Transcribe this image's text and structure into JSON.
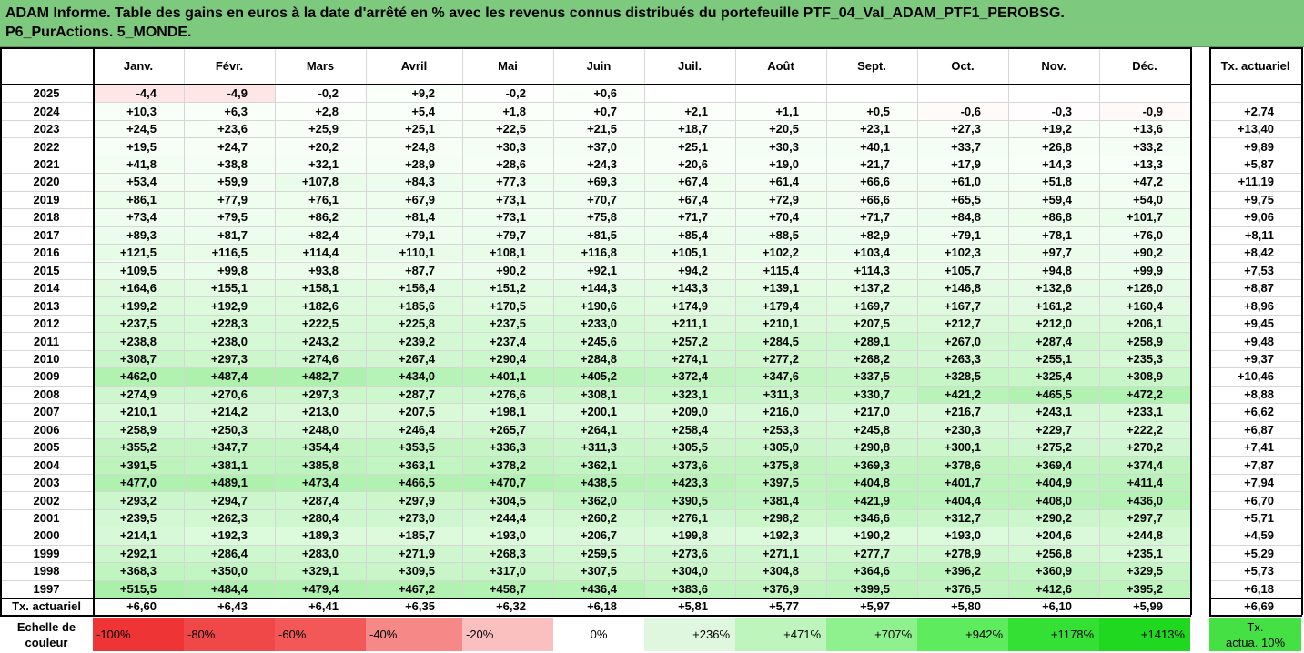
{
  "title": {
    "line1": "ADAM Informe. Table des gains en euros à la date d'arrêté en % avec les revenus connus distribués du portefeuille PTF_04_Val_ADAM_PTF1_PEROBSG.",
    "line2": "P6_PurActions. 5_MONDE."
  },
  "months": [
    "Janv.",
    "Févr.",
    "Mars",
    "Avril",
    "Mai",
    "Juin",
    "Juil.",
    "Août",
    "Sept.",
    "Oct.",
    "Nov.",
    "Déc."
  ],
  "rate_header": "Tx. actuariel",
  "rows": [
    {
      "year": "2025",
      "values": [
        "-4,4",
        "-4,9",
        "-0,2",
        "+9,2",
        "-0,2",
        "+0,6",
        "",
        "",
        "",
        "",
        "",
        ""
      ],
      "rate": ""
    },
    {
      "year": "2024",
      "values": [
        "+10,3",
        "+6,3",
        "+2,8",
        "+5,4",
        "+1,8",
        "+0,7",
        "+2,1",
        "+1,1",
        "+0,5",
        "-0,6",
        "-0,3",
        "-0,9"
      ],
      "rate": "+2,74"
    },
    {
      "year": "2023",
      "values": [
        "+24,5",
        "+23,6",
        "+25,9",
        "+25,1",
        "+22,5",
        "+21,5",
        "+18,7",
        "+20,5",
        "+23,1",
        "+27,3",
        "+19,2",
        "+13,6"
      ],
      "rate": "+13,40"
    },
    {
      "year": "2022",
      "values": [
        "+19,5",
        "+24,7",
        "+20,2",
        "+24,8",
        "+30,3",
        "+37,0",
        "+25,1",
        "+30,3",
        "+40,1",
        "+33,7",
        "+26,8",
        "+33,2"
      ],
      "rate": "+9,89"
    },
    {
      "year": "2021",
      "values": [
        "+41,8",
        "+38,8",
        "+32,1",
        "+28,9",
        "+28,6",
        "+24,3",
        "+20,6",
        "+19,0",
        "+21,7",
        "+17,9",
        "+14,3",
        "+13,3"
      ],
      "rate": "+5,87"
    },
    {
      "year": "2020",
      "values": [
        "+53,4",
        "+59,9",
        "+107,8",
        "+84,3",
        "+77,3",
        "+69,3",
        "+67,4",
        "+61,4",
        "+66,6",
        "+61,0",
        "+51,8",
        "+47,2"
      ],
      "rate": "+11,19"
    },
    {
      "year": "2019",
      "values": [
        "+86,1",
        "+77,9",
        "+76,1",
        "+67,9",
        "+73,1",
        "+70,7",
        "+67,4",
        "+72,9",
        "+66,6",
        "+65,5",
        "+59,4",
        "+54,0"
      ],
      "rate": "+9,75"
    },
    {
      "year": "2018",
      "values": [
        "+73,4",
        "+79,5",
        "+86,2",
        "+81,4",
        "+73,1",
        "+75,8",
        "+71,7",
        "+70,4",
        "+71,7",
        "+84,8",
        "+86,8",
        "+101,7"
      ],
      "rate": "+9,06"
    },
    {
      "year": "2017",
      "values": [
        "+89,3",
        "+81,7",
        "+82,4",
        "+79,1",
        "+79,7",
        "+81,5",
        "+85,4",
        "+88,5",
        "+82,9",
        "+79,1",
        "+78,1",
        "+76,0"
      ],
      "rate": "+8,11"
    },
    {
      "year": "2016",
      "values": [
        "+121,5",
        "+116,5",
        "+114,4",
        "+110,1",
        "+108,1",
        "+116,8",
        "+105,1",
        "+102,2",
        "+103,4",
        "+102,3",
        "+97,7",
        "+90,2"
      ],
      "rate": "+8,42"
    },
    {
      "year": "2015",
      "values": [
        "+109,5",
        "+99,8",
        "+93,8",
        "+87,7",
        "+90,2",
        "+92,1",
        "+94,2",
        "+115,4",
        "+114,3",
        "+105,7",
        "+94,8",
        "+99,9"
      ],
      "rate": "+7,53"
    },
    {
      "year": "2014",
      "values": [
        "+164,6",
        "+155,1",
        "+158,1",
        "+156,4",
        "+151,2",
        "+144,3",
        "+143,3",
        "+139,1",
        "+137,2",
        "+146,8",
        "+132,6",
        "+126,0"
      ],
      "rate": "+8,87"
    },
    {
      "year": "2013",
      "values": [
        "+199,2",
        "+192,9",
        "+182,6",
        "+185,6",
        "+170,5",
        "+190,6",
        "+174,9",
        "+179,4",
        "+169,7",
        "+167,7",
        "+161,2",
        "+160,4"
      ],
      "rate": "+8,96"
    },
    {
      "year": "2012",
      "values": [
        "+237,5",
        "+228,3",
        "+222,5",
        "+225,8",
        "+237,5",
        "+233,0",
        "+211,1",
        "+210,1",
        "+207,5",
        "+212,7",
        "+212,0",
        "+206,1"
      ],
      "rate": "+9,45"
    },
    {
      "year": "2011",
      "values": [
        "+238,8",
        "+238,0",
        "+243,2",
        "+239,2",
        "+237,4",
        "+245,6",
        "+257,2",
        "+284,5",
        "+289,1",
        "+267,0",
        "+287,4",
        "+258,9"
      ],
      "rate": "+9,48"
    },
    {
      "year": "2010",
      "values": [
        "+308,7",
        "+297,3",
        "+274,6",
        "+267,4",
        "+290,4",
        "+284,8",
        "+274,1",
        "+277,2",
        "+268,2",
        "+263,3",
        "+255,1",
        "+235,3"
      ],
      "rate": "+9,37"
    },
    {
      "year": "2009",
      "values": [
        "+462,0",
        "+487,4",
        "+482,7",
        "+434,0",
        "+401,1",
        "+405,2",
        "+372,4",
        "+347,6",
        "+337,5",
        "+328,5",
        "+325,4",
        "+308,9"
      ],
      "rate": "+10,46"
    },
    {
      "year": "2008",
      "values": [
        "+274,9",
        "+270,6",
        "+297,3",
        "+287,7",
        "+276,6",
        "+308,1",
        "+323,1",
        "+311,3",
        "+330,7",
        "+421,2",
        "+465,5",
        "+472,2"
      ],
      "rate": "+8,88"
    },
    {
      "year": "2007",
      "values": [
        "+210,1",
        "+214,2",
        "+213,0",
        "+207,5",
        "+198,1",
        "+200,1",
        "+209,0",
        "+216,0",
        "+217,0",
        "+216,7",
        "+243,1",
        "+233,1"
      ],
      "rate": "+6,62"
    },
    {
      "year": "2006",
      "values": [
        "+258,9",
        "+250,3",
        "+248,0",
        "+246,4",
        "+265,7",
        "+264,1",
        "+258,4",
        "+253,3",
        "+245,8",
        "+230,3",
        "+229,7",
        "+222,2"
      ],
      "rate": "+6,87"
    },
    {
      "year": "2005",
      "values": [
        "+355,2",
        "+347,7",
        "+354,4",
        "+353,5",
        "+336,3",
        "+311,3",
        "+305,5",
        "+305,0",
        "+290,8",
        "+300,1",
        "+275,2",
        "+270,2"
      ],
      "rate": "+7,41"
    },
    {
      "year": "2004",
      "values": [
        "+391,5",
        "+381,1",
        "+385,8",
        "+363,1",
        "+378,2",
        "+362,1",
        "+373,6",
        "+375,8",
        "+369,3",
        "+378,6",
        "+369,4",
        "+374,4"
      ],
      "rate": "+7,87"
    },
    {
      "year": "2003",
      "values": [
        "+477,0",
        "+489,1",
        "+473,4",
        "+466,5",
        "+470,7",
        "+438,5",
        "+423,3",
        "+397,5",
        "+404,8",
        "+401,7",
        "+404,9",
        "+411,4"
      ],
      "rate": "+7,94"
    },
    {
      "year": "2002",
      "values": [
        "+293,2",
        "+294,7",
        "+287,4",
        "+297,9",
        "+304,5",
        "+362,0",
        "+390,5",
        "+381,4",
        "+421,9",
        "+404,4",
        "+408,0",
        "+436,0"
      ],
      "rate": "+6,70"
    },
    {
      "year": "2001",
      "values": [
        "+239,5",
        "+262,3",
        "+280,4",
        "+273,0",
        "+244,4",
        "+260,2",
        "+276,1",
        "+298,2",
        "+346,6",
        "+312,7",
        "+290,2",
        "+297,7"
      ],
      "rate": "+5,71"
    },
    {
      "year": "2000",
      "values": [
        "+214,1",
        "+192,3",
        "+189,3",
        "+185,7",
        "+193,0",
        "+206,7",
        "+199,8",
        "+192,3",
        "+190,2",
        "+193,0",
        "+204,6",
        "+244,8"
      ],
      "rate": "+4,59"
    },
    {
      "year": "1999",
      "values": [
        "+292,1",
        "+286,4",
        "+283,0",
        "+271,9",
        "+268,3",
        "+259,5",
        "+273,6",
        "+271,1",
        "+277,7",
        "+278,9",
        "+256,8",
        "+235,1"
      ],
      "rate": "+5,29"
    },
    {
      "year": "1998",
      "values": [
        "+368,3",
        "+350,0",
        "+329,1",
        "+309,5",
        "+317,0",
        "+307,5",
        "+304,0",
        "+304,8",
        "+364,6",
        "+396,2",
        "+360,9",
        "+329,5"
      ],
      "rate": "+5,73"
    },
    {
      "year": "1997",
      "values": [
        "+515,5",
        "+484,4",
        "+479,4",
        "+467,2",
        "+458,7",
        "+436,4",
        "+383,6",
        "+376,9",
        "+399,5",
        "+376,5",
        "+412,6",
        "+395,2"
      ],
      "rate": "+6,18"
    }
  ],
  "footer": {
    "label": "Tx. actuariel",
    "values": [
      "+6,60",
      "+6,43",
      "+6,41",
      "+6,35",
      "+6,32",
      "+6,18",
      "+5,81",
      "+5,77",
      "+5,97",
      "+5,80",
      "+6,10",
      "+5,99"
    ],
    "rate": "+6,69"
  },
  "scale": {
    "label_line1": "Echelle de",
    "label_line2": "couleur",
    "items": [
      {
        "label": "-100%",
        "color": "#ee3434"
      },
      {
        "label": "-80%",
        "color": "#f04848"
      },
      {
        "label": "-60%",
        "color": "#f25858"
      },
      {
        "label": "-40%",
        "color": "#f68888"
      },
      {
        "label": "-20%",
        "color": "#fac0c0"
      },
      {
        "label": "0%",
        "color": "#ffffff"
      },
      {
        "label": "+236%",
        "color": "#dff7df"
      },
      {
        "label": "+471%",
        "color": "#bdf5bd"
      },
      {
        "label": "+707%",
        "color": "#8ef18e"
      },
      {
        "label": "+942%",
        "color": "#5eeb5e"
      },
      {
        "label": "+1178%",
        "color": "#33e033"
      },
      {
        "label": "+1413%",
        "color": "#1fd81f"
      }
    ],
    "rate_label_line1": "Tx.",
    "rate_label_line2": "actua. 10%",
    "rate_color": "#44e044"
  },
  "colors": {
    "title_bg": "#7dc97d"
  }
}
